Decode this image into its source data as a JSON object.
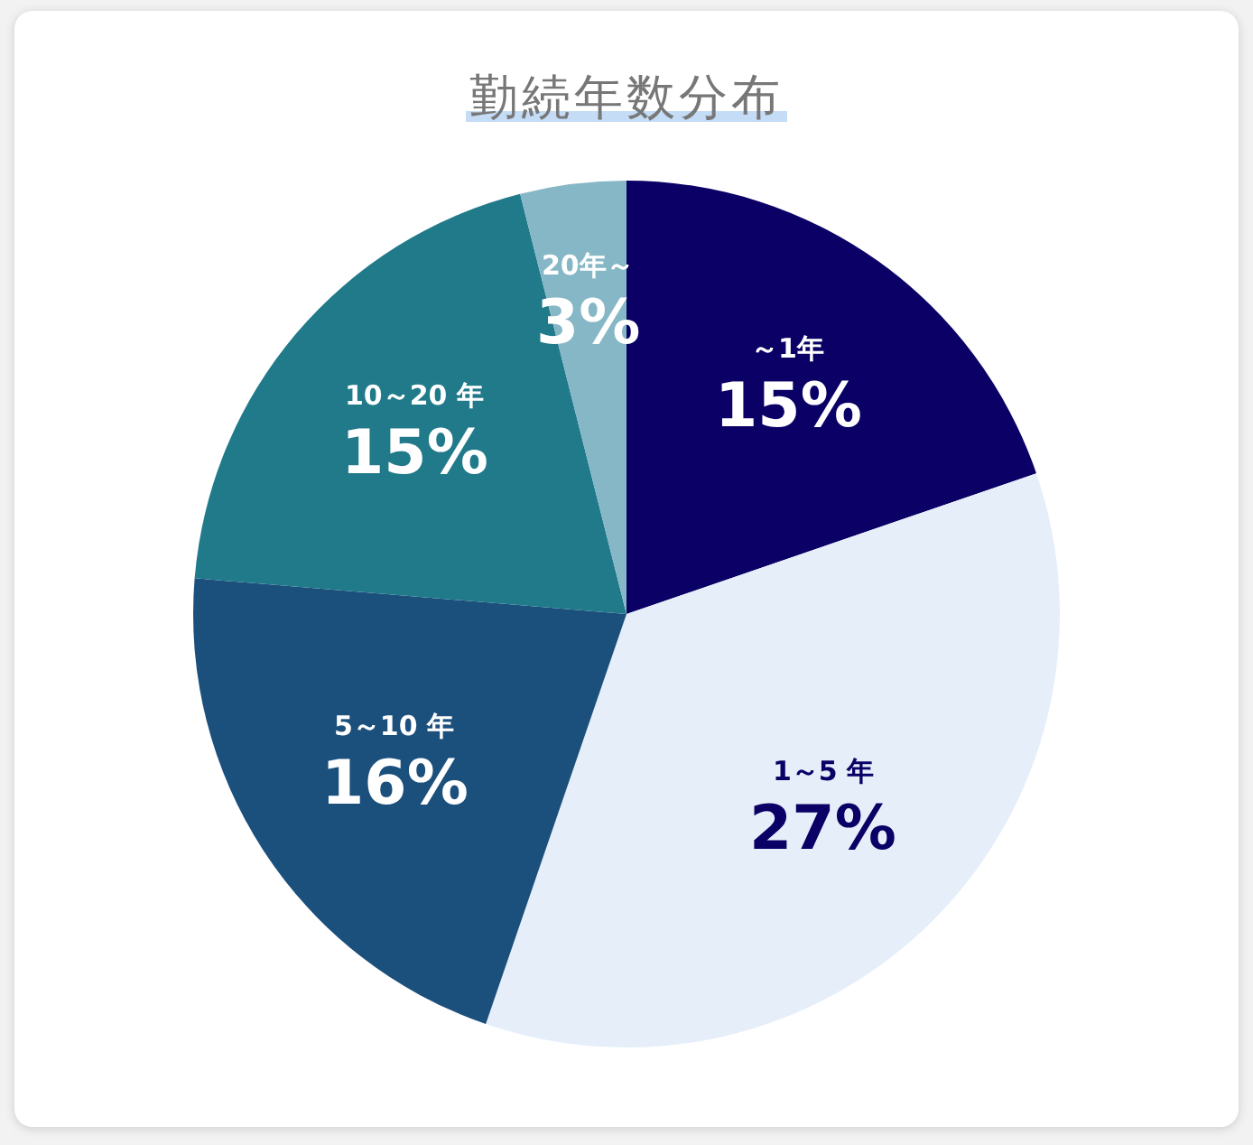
{
  "chart_data": {
    "type": "pie",
    "title": "勤続年数分布",
    "categories": [
      "～1年",
      "1～5 年",
      "5～10 年",
      "10～20 年",
      "20年～"
    ],
    "values": [
      15,
      27,
      16,
      15,
      3
    ],
    "value_labels": [
      "15%",
      "27%",
      "16%",
      "15%",
      "3%"
    ],
    "colors": [
      "#0a0066",
      "#e6eff9",
      "#1b4f7c",
      "#207a8a",
      "#86b7c6"
    ],
    "legend": false
  }
}
